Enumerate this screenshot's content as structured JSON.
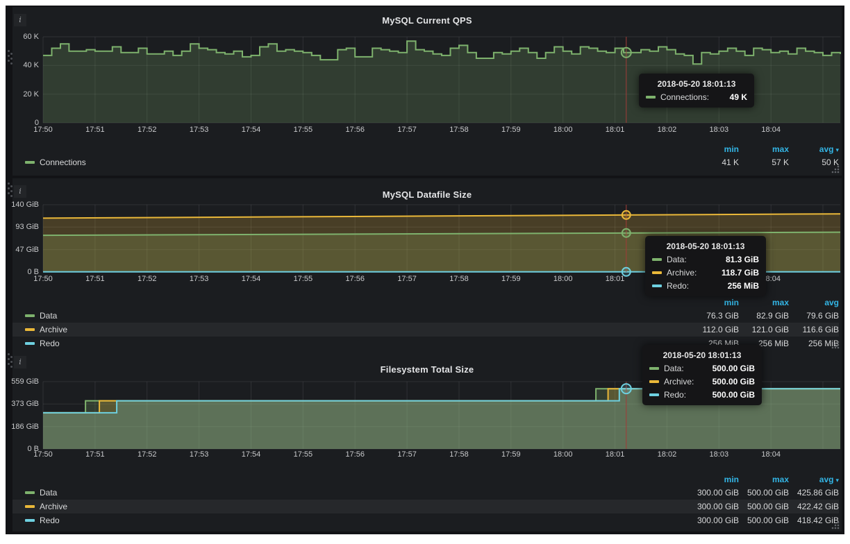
{
  "colors": {
    "green": "#7eb26d",
    "yellow": "#eab839",
    "blue": "#6ed0e0",
    "crosshair": "#a33b38",
    "header_blue": "#33b5e5"
  },
  "x_ticks": [
    "17:50",
    "17:51",
    "17:52",
    "17:53",
    "17:54",
    "17:55",
    "17:56",
    "17:57",
    "17:58",
    "17:59",
    "18:00",
    "18:01",
    "18:02",
    "18:03",
    "18:04"
  ],
  "panels": [
    {
      "title": "MySQL Current QPS",
      "y_ticks": [
        "60 K",
        "40 K",
        "20 K",
        "0"
      ],
      "legend": {
        "headers": [
          "min",
          "max",
          "avg"
        ],
        "avg_caret": true,
        "rows": [
          {
            "label": "Connections",
            "color": "green",
            "values": [
              "41 K",
              "57 K",
              "50 K"
            ]
          }
        ]
      }
    },
    {
      "title": "MySQL Datafile Size",
      "y_ticks": [
        "140 GiB",
        "93 GiB",
        "47 GiB",
        "0 B"
      ],
      "legend": {
        "headers": [
          "min",
          "max",
          "avg"
        ],
        "avg_caret": false,
        "rows": [
          {
            "label": "Data",
            "color": "green",
            "values": [
              "76.3 GiB",
              "82.9 GiB",
              "79.6 GiB"
            ]
          },
          {
            "label": "Archive",
            "color": "yellow",
            "values": [
              "112.0 GiB",
              "121.0 GiB",
              "116.6 GiB"
            ]
          },
          {
            "label": "Redo",
            "color": "blue",
            "values": [
              "256 MiB",
              "256 MiB",
              "256 MiB"
            ]
          }
        ]
      }
    },
    {
      "title": "Filesystem Total Size",
      "y_ticks": [
        "559 GiB",
        "373 GiB",
        "186 GiB",
        "0 B"
      ],
      "legend": {
        "headers": [
          "min",
          "max",
          "avg"
        ],
        "avg_caret": true,
        "rows": [
          {
            "label": "Data",
            "color": "green",
            "values": [
              "300.00 GiB",
              "500.00 GiB",
              "425.86 GiB"
            ]
          },
          {
            "label": "Archive",
            "color": "yellow",
            "values": [
              "300.00 GiB",
              "500.00 GiB",
              "422.42 GiB"
            ]
          },
          {
            "label": "Redo",
            "color": "blue",
            "values": [
              "300.00 GiB",
              "500.00 GiB",
              "418.42 GiB"
            ]
          }
        ]
      }
    }
  ],
  "tooltips": [
    {
      "time": "2018-05-20 18:01:13",
      "rows": [
        {
          "color": "green",
          "label": "Connections:",
          "value": "49 K"
        }
      ]
    },
    {
      "time": "2018-05-20 18:01:13",
      "rows": [
        {
          "color": "green",
          "label": "Data:",
          "value": "81.3 GiB"
        },
        {
          "color": "yellow",
          "label": "Archive:",
          "value": "118.7 GiB"
        },
        {
          "color": "blue",
          "label": "Redo:",
          "value": "256 MiB"
        }
      ]
    },
    {
      "time": "2018-05-20 18:01:13",
      "rows": [
        {
          "color": "green",
          "label": "Data:",
          "value": "500.00 GiB"
        },
        {
          "color": "yellow",
          "label": "Archive:",
          "value": "500.00 GiB"
        },
        {
          "color": "blue",
          "label": "Redo:",
          "value": "500.00 GiB"
        }
      ]
    }
  ],
  "chart_data": [
    {
      "type": "line",
      "title": "MySQL Current QPS",
      "x_range": [
        "17:50",
        "18:05:20"
      ],
      "x_unit": "seconds_from_17:50",
      "y_unit": "K (thousand queries/sec)",
      "ylim": [
        0,
        60
      ],
      "grid": true,
      "legend_position": "bottom",
      "crosshair_time": "2018-05-20 18:01:13",
      "crosshair_seconds": 673,
      "series": [
        {
          "name": "Connections",
          "color": "green",
          "x0": 0,
          "dx": 10,
          "values": [
            47,
            52,
            55,
            50,
            50,
            51,
            50,
            50,
            53,
            49,
            49,
            52,
            48,
            48,
            50,
            47,
            50,
            55,
            52,
            51,
            49,
            48,
            50,
            46,
            47,
            53,
            55,
            50,
            51,
            50,
            49,
            47,
            44,
            44,
            51,
            52,
            46,
            46,
            52,
            51,
            50,
            49,
            57,
            51,
            50,
            48,
            47,
            52,
            54,
            49,
            45,
            45,
            49,
            48,
            50,
            52,
            49,
            45,
            49,
            53,
            50,
            48,
            53,
            52,
            50,
            49,
            52,
            49,
            49,
            51,
            50,
            53,
            51,
            48,
            47,
            41,
            49,
            48,
            50,
            52,
            50,
            47,
            52,
            51,
            49,
            50,
            48,
            52,
            50,
            49,
            47,
            49,
            48
          ],
          "stats": {
            "min": 41,
            "max": 57,
            "avg": 50
          }
        }
      ],
      "markers": [
        {
          "series": "Connections",
          "color": "green",
          "value": 49
        }
      ]
    },
    {
      "type": "line",
      "title": "MySQL Datafile Size",
      "x_range": [
        "17:50",
        "18:05:20"
      ],
      "y_unit": "GiB",
      "ylim": [
        0,
        140
      ],
      "grid": true,
      "legend_position": "bottom",
      "crosshair_time": "2018-05-20 18:01:13",
      "crosshair_seconds": 673,
      "series": [
        {
          "name": "Data",
          "color": "green",
          "points": [
            [
              0,
              76.3
            ],
            [
              920,
              82.9
            ]
          ],
          "stats": {
            "min": 76.3,
            "max": 82.9,
            "avg": 79.6
          }
        },
        {
          "name": "Archive",
          "color": "yellow",
          "points": [
            [
              0,
              112.0
            ],
            [
              920,
              121.0
            ]
          ],
          "stats": {
            "min": 112.0,
            "max": 121.0,
            "avg": 116.6
          }
        },
        {
          "name": "Redo",
          "color": "blue",
          "points": [
            [
              0,
              0.25
            ],
            [
              920,
              0.25
            ]
          ],
          "stats": {
            "min_mib": 256,
            "max_mib": 256,
            "avg_mib": 256
          }
        }
      ],
      "markers": [
        {
          "series": "Archive",
          "color": "yellow",
          "value": 118.7
        },
        {
          "series": "Data",
          "color": "green",
          "value": 81.3
        },
        {
          "series": "Redo",
          "color": "blue",
          "value": 0.25
        }
      ]
    },
    {
      "type": "line",
      "title": "Filesystem Total Size",
      "x_range": [
        "17:50",
        "18:05:20"
      ],
      "y_unit": "GiB",
      "ylim": [
        0,
        559
      ],
      "grid": true,
      "legend_position": "bottom",
      "crosshair_time": "2018-05-20 18:01:13",
      "crosshair_seconds": 673,
      "series": [
        {
          "name": "Data",
          "color": "green",
          "points": [
            [
              0,
              300
            ],
            [
              49,
              300
            ],
            [
              49,
              400
            ],
            [
              638,
              400
            ],
            [
              638,
              500
            ],
            [
              920,
              500
            ]
          ],
          "stats": {
            "min": 300.0,
            "max": 500.0,
            "avg": 425.86
          }
        },
        {
          "name": "Archive",
          "color": "yellow",
          "points": [
            [
              0,
              300
            ],
            [
              65,
              300
            ],
            [
              65,
              400
            ],
            [
              652,
              400
            ],
            [
              652,
              500
            ],
            [
              920,
              500
            ]
          ],
          "stats": {
            "min": 300.0,
            "max": 500.0,
            "avg": 422.42
          }
        },
        {
          "name": "Redo",
          "color": "blue",
          "points": [
            [
              0,
              300
            ],
            [
              85,
              300
            ],
            [
              85,
              400
            ],
            [
              665,
              400
            ],
            [
              665,
              500
            ],
            [
              920,
              500
            ]
          ],
          "stats": {
            "min": 300.0,
            "max": 500.0,
            "avg": 418.42
          }
        }
      ],
      "markers": [
        {
          "series": "Redo",
          "color": "blue",
          "value": 500
        }
      ]
    }
  ]
}
